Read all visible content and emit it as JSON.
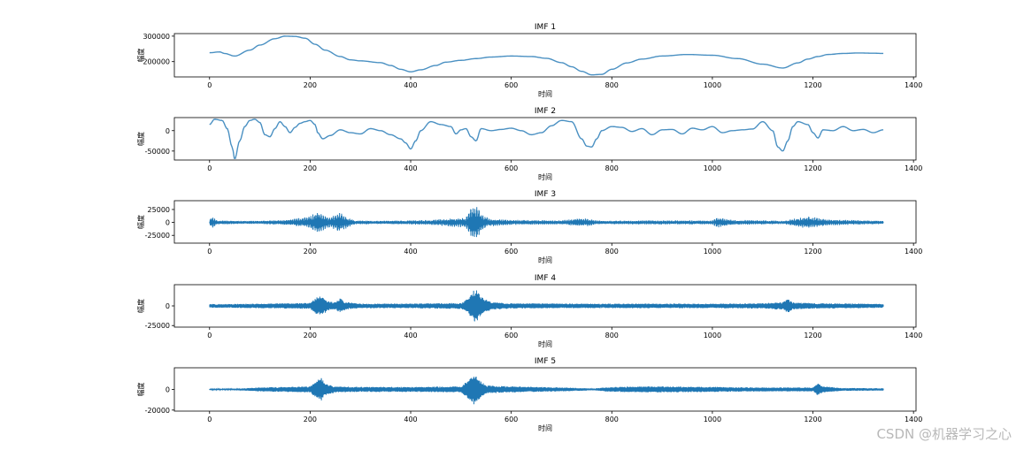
{
  "watermark": "CSDN @机器学习之心",
  "chart_data": [
    {
      "type": "line",
      "title": "IMF 1",
      "xlabel": "时间",
      "ylabel": "幅度",
      "xlim": [
        -70,
        1405
      ],
      "ylim": [
        140000,
        310000
      ],
      "xticks": [
        0,
        200,
        400,
        600,
        800,
        1000,
        1200,
        1400
      ],
      "yticks": [
        200000,
        300000
      ],
      "color": "#4a90c2",
      "series": [
        {
          "name": "IMF 1",
          "x": [
            0,
            20,
            30,
            50,
            80,
            100,
            130,
            150,
            170,
            190,
            210,
            230,
            260,
            280,
            300,
            340,
            360,
            380,
            400,
            420,
            450,
            470,
            500,
            530,
            560,
            600,
            640,
            670,
            700,
            720,
            740,
            760,
            780,
            800,
            830,
            860,
            900,
            950,
            1000,
            1050,
            1100,
            1140,
            1170,
            1190,
            1210,
            1230,
            1260,
            1290,
            1320,
            1340
          ],
          "values": [
            235000,
            238000,
            232000,
            222000,
            245000,
            265000,
            290000,
            300000,
            299000,
            292000,
            268000,
            245000,
            220000,
            207000,
            203000,
            196000,
            185000,
            170000,
            160000,
            168000,
            185000,
            198000,
            205000,
            212000,
            218000,
            222000,
            220000,
            213000,
            196000,
            180000,
            162000,
            148000,
            150000,
            170000,
            195000,
            210000,
            222000,
            228000,
            225000,
            212000,
            190000,
            175000,
            195000,
            210000,
            220000,
            228000,
            232000,
            234000,
            233000,
            232000
          ]
        }
      ]
    },
    {
      "type": "line",
      "title": "IMF 2",
      "xlabel": "时间",
      "ylabel": "幅度",
      "xlim": [
        -70,
        1405
      ],
      "ylim": [
        -72000,
        32000
      ],
      "xticks": [
        0,
        200,
        400,
        600,
        800,
        1000,
        1200,
        1400
      ],
      "yticks": [
        -50000,
        0
      ],
      "color": "#4a90c2",
      "series": [
        {
          "name": "IMF 2",
          "x": [
            0,
            10,
            25,
            35,
            45,
            50,
            60,
            70,
            80,
            90,
            100,
            110,
            120,
            130,
            140,
            150,
            160,
            170,
            180,
            190,
            200,
            210,
            215,
            225,
            240,
            260,
            280,
            300,
            320,
            340,
            360,
            380,
            390,
            400,
            410,
            420,
            440,
            460,
            480,
            490,
            500,
            510,
            520,
            530,
            540,
            560,
            580,
            600,
            620,
            640,
            660,
            680,
            700,
            720,
            740,
            750,
            760,
            770,
            780,
            800,
            820,
            840,
            860,
            880,
            900,
            920,
            940,
            960,
            980,
            1000,
            1020,
            1040,
            1060,
            1080,
            1100,
            1120,
            1130,
            1140,
            1150,
            1160,
            1170,
            1190,
            1200,
            1210,
            1220,
            1240,
            1260,
            1280,
            1300,
            1320,
            1340
          ],
          "values": [
            15000,
            28000,
            25000,
            5000,
            -40000,
            -70000,
            -25000,
            10000,
            25000,
            28000,
            20000,
            -10000,
            -15000,
            5000,
            22000,
            10000,
            -5000,
            8000,
            18000,
            22000,
            25000,
            15000,
            -5000,
            -20000,
            -12000,
            2000,
            -5000,
            -8000,
            5000,
            0,
            -10000,
            -20000,
            -30000,
            -45000,
            -25000,
            0,
            22000,
            15000,
            10000,
            -8000,
            2000,
            5000,
            -15000,
            -25000,
            5000,
            0,
            3000,
            6000,
            0,
            -10000,
            -5000,
            12000,
            25000,
            22000,
            -20000,
            -38000,
            -40000,
            -20000,
            0,
            10000,
            8000,
            -2000,
            5000,
            -10000,
            2000,
            3000,
            -8000,
            6000,
            2000,
            10000,
            -5000,
            0,
            2000,
            4000,
            22000,
            0,
            -40000,
            -50000,
            -25000,
            10000,
            22000,
            15000,
            -5000,
            -18000,
            2000,
            0,
            10000,
            0,
            3000,
            -5000,
            2000
          ]
        }
      ]
    },
    {
      "type": "line",
      "title": "IMF 3",
      "xlabel": "时间",
      "ylabel": "幅度",
      "xlim": [
        -70,
        1405
      ],
      "ylim": [
        -40000,
        42000
      ],
      "xticks": [
        0,
        200,
        400,
        600,
        800,
        1000,
        1200,
        1400
      ],
      "yticks": [
        -25000,
        0,
        25000
      ],
      "color": "#1f77b4",
      "envelope": {
        "x": [
          0,
          5,
          15,
          60,
          100,
          160,
          200,
          215,
          225,
          240,
          260,
          275,
          290,
          340,
          440,
          460,
          510,
          520,
          530,
          540,
          555,
          600,
          700,
          740,
          780,
          840,
          1000,
          1010,
          1040,
          1100,
          1140,
          1170,
          1190,
          1230,
          1300,
          1340
        ],
        "values": [
          5000,
          12000,
          4000,
          3000,
          3000,
          6000,
          12000,
          22000,
          16000,
          10000,
          20000,
          10000,
          4000,
          3000,
          5000,
          7000,
          10000,
          30000,
          36000,
          18000,
          8000,
          5000,
          4000,
          9000,
          3000,
          4000,
          4000,
          10000,
          5000,
          4000,
          3000,
          9000,
          12000,
          6000,
          4000,
          3000
        ]
      },
      "cycles_per_point": 2.7,
      "description_mode": "oscillation"
    },
    {
      "type": "line",
      "title": "IMF 4",
      "xlabel": "时间",
      "ylabel": "幅度",
      "xlim": [
        -70,
        1405
      ],
      "ylim": [
        -27000,
        27000
      ],
      "xticks": [
        0,
        200,
        400,
        600,
        800,
        1000,
        1200,
        1400
      ],
      "yticks": [
        -25000,
        0
      ],
      "color": "#1f77b4",
      "envelope": {
        "x": [
          0,
          40,
          100,
          150,
          200,
          215,
          222,
          235,
          250,
          260,
          270,
          300,
          400,
          500,
          515,
          525,
          530,
          540,
          560,
          600,
          700,
          900,
          1000,
          1100,
          1140,
          1150,
          1160,
          1200,
          1300,
          1340
        ],
        "values": [
          2500,
          2500,
          3000,
          3500,
          4000,
          12000,
          14000,
          6000,
          5000,
          10000,
          5000,
          3000,
          3000,
          4000,
          10000,
          20000,
          23000,
          12000,
          5000,
          3500,
          3000,
          3000,
          3000,
          3500,
          5000,
          9000,
          5000,
          3500,
          3000,
          2500
        ]
      },
      "cycles_per_point": 6,
      "description_mode": "oscillation"
    },
    {
      "type": "line",
      "title": "IMF 5",
      "xlabel": "时间",
      "ylabel": "幅度",
      "xlim": [
        -70,
        1405
      ],
      "ylim": [
        -21000,
        21000
      ],
      "xticks": [
        0,
        200,
        400,
        600,
        800,
        1000,
        1200,
        1400
      ],
      "yticks": [
        -20000,
        0
      ],
      "color": "#1f77b4",
      "envelope": {
        "x": [
          0,
          60,
          100,
          200,
          215,
          222,
          230,
          250,
          300,
          400,
          500,
          520,
          528,
          535,
          550,
          600,
          700,
          760,
          800,
          860,
          900,
          1000,
          1100,
          1200,
          1210,
          1220,
          1260,
          1340
        ],
        "values": [
          800,
          1000,
          2000,
          3000,
          10000,
          12000,
          6000,
          3000,
          2500,
          2500,
          3000,
          12000,
          16000,
          10000,
          4000,
          3000,
          2000,
          1000,
          2500,
          3000,
          3000,
          2500,
          2000,
          2000,
          6000,
          3000,
          1500,
          1200
        ]
      },
      "cycles_per_point": 7,
      "description_mode": "oscillation"
    }
  ]
}
